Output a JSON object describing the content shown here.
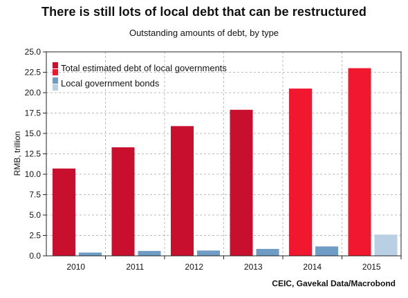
{
  "title": "There is still lots of local debt that can be restructured",
  "subtitle": "Outstanding amounts of debt, by type",
  "source": "CEIC, Gavekal Data/Macrobond",
  "chart_data": {
    "type": "bar",
    "ylabel": "RMB, trillion",
    "xlabel": "",
    "ylim": [
      0,
      25
    ],
    "yticks": [
      "0.0",
      "2.5",
      "5.0",
      "7.5",
      "10.0",
      "12.5",
      "15.0",
      "17.5",
      "20.0",
      "22.5",
      "25.0"
    ],
    "categories": [
      "2010",
      "2011",
      "2012",
      "2013",
      "2014",
      "2015"
    ],
    "grid": true,
    "legend_position": "top-left",
    "series": [
      {
        "name": "Total estimated debt of local governments",
        "values": [
          10.7,
          13.3,
          15.9,
          17.9,
          20.5,
          23.0
        ],
        "colors": [
          "#c8102e",
          "#c8102e",
          "#c8102e",
          "#c8102e",
          "#f0172f",
          "#f0172f"
        ],
        "legend_colors": [
          "#c8102e",
          "#f0172f"
        ]
      },
      {
        "name": "Local government bonds",
        "values": [
          0.4,
          0.6,
          0.65,
          0.85,
          1.15,
          2.6
        ],
        "colors": [
          "#6f9cc5",
          "#6f9cc5",
          "#6f9cc5",
          "#6f9cc5",
          "#6f9cc5",
          "#b9cfe3"
        ],
        "legend_colors": [
          "#6f9cc5",
          "#b9cfe3"
        ]
      }
    ]
  }
}
